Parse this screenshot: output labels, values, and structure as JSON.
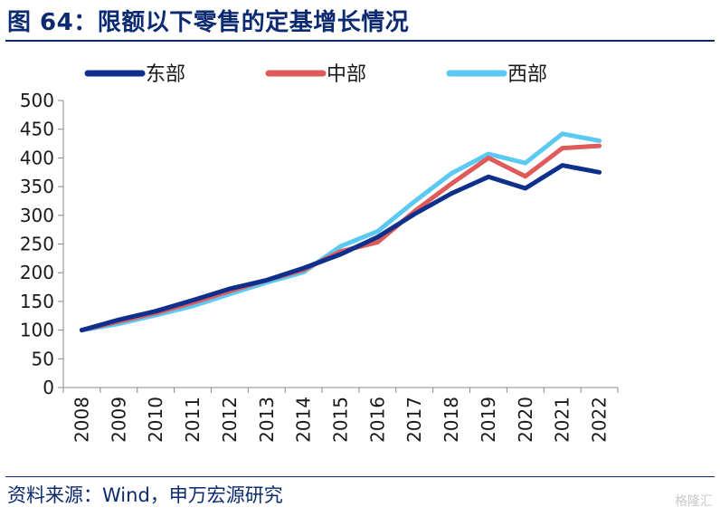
{
  "header": {
    "title": "图 64：限额以下零售的定基增长情况"
  },
  "footer": {
    "source": "资料来源：Wind，申万宏源研究",
    "watermark": "格隆汇"
  },
  "colors": {
    "east": "#0e2f8c",
    "central": "#e05a5a",
    "west": "#5cc9f2",
    "accent": "#0b2a6f"
  },
  "chart_data": {
    "type": "line",
    "title": "",
    "xlabel": "",
    "ylabel": "",
    "x": [
      "2008",
      "2009",
      "2010",
      "2011",
      "2012",
      "2013",
      "2014",
      "2015",
      "2016",
      "2017",
      "2018",
      "2019",
      "2020",
      "2021",
      "2022"
    ],
    "ylim": [
      0,
      500
    ],
    "yticks": [
      0,
      50,
      100,
      150,
      200,
      250,
      300,
      350,
      400,
      450,
      500
    ],
    "grid": false,
    "legend_position": "top",
    "series": [
      {
        "name": "东部",
        "color": "#0e2f8c",
        "values": [
          100,
          118,
          133,
          152,
          172,
          187,
          208,
          232,
          262,
          302,
          338,
          367,
          347,
          387,
          375
        ]
      },
      {
        "name": "中部",
        "color": "#e05a5a",
        "values": [
          100,
          115,
          130,
          148,
          168,
          187,
          205,
          237,
          253,
          307,
          355,
          400,
          368,
          417,
          421
        ]
      },
      {
        "name": "西部",
        "color": "#5cc9f2",
        "values": [
          100,
          111,
          126,
          142,
          163,
          183,
          201,
          246,
          272,
          324,
          373,
          407,
          391,
          442,
          430
        ]
      }
    ]
  }
}
